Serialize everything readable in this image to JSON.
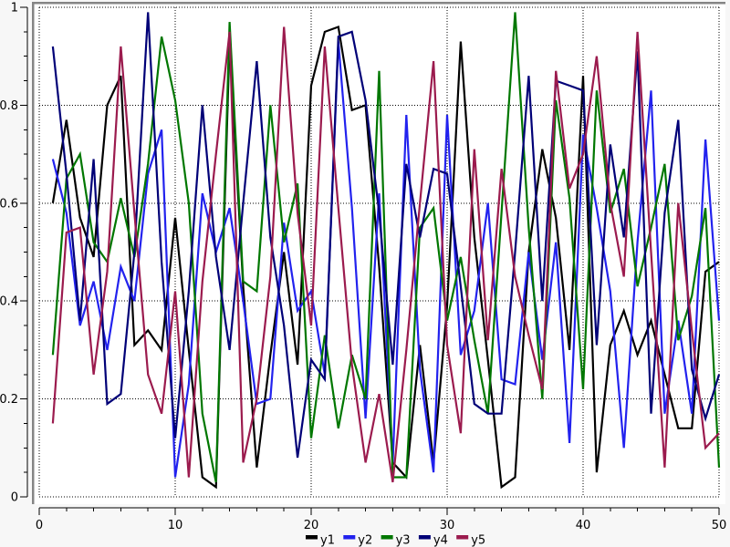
{
  "window": {
    "background": "#f7f7f7",
    "plot_background": "#ffffff",
    "frame_color": "#858585",
    "grid_color": "#000000",
    "tick_color": "#000000",
    "label_color": "#000000"
  },
  "chart_data": {
    "type": "line",
    "title": "",
    "xlabel": "",
    "ylabel": "",
    "xlim": [
      0,
      50
    ],
    "ylim": [
      0,
      1
    ],
    "grid": "dotted",
    "legend_position": "bottom-center",
    "x_major_ticks": [
      0,
      10,
      20,
      30,
      40,
      50
    ],
    "x_minor_tick_step": 2,
    "y_major_ticks": [
      0,
      0.2,
      0.4,
      0.6,
      0.8,
      1
    ],
    "y_minor_tick_step": 0.05,
    "x_tick_labels": [
      "0",
      "10",
      "20",
      "30",
      "40",
      "50"
    ],
    "y_tick_labels": [
      "0",
      "0.2",
      "0.4",
      "0.6",
      "0.8",
      "1"
    ],
    "x": [
      1,
      2,
      3,
      4,
      5,
      6,
      7,
      8,
      9,
      10,
      11,
      12,
      13,
      14,
      15,
      16,
      17,
      18,
      19,
      20,
      21,
      22,
      23,
      24,
      25,
      26,
      27,
      28,
      29,
      30,
      31,
      32,
      33,
      34,
      35,
      36,
      37,
      38,
      39,
      40,
      41,
      42,
      43,
      44,
      45,
      46,
      47,
      48,
      49,
      50
    ],
    "series": [
      {
        "name": "y1",
        "color": "#000000",
        "values": [
          0.6,
          0.77,
          0.57,
          0.49,
          0.8,
          0.86,
          0.31,
          0.34,
          0.3,
          0.57,
          0.3,
          0.04,
          0.02,
          0.93,
          0.43,
          0.06,
          0.29,
          0.5,
          0.27,
          0.84,
          0.95,
          0.96,
          0.79,
          0.8,
          0.47,
          0.07,
          0.04,
          0.31,
          0.07,
          0.39,
          0.93,
          0.53,
          0.28,
          0.02,
          0.04,
          0.5,
          0.71,
          0.57,
          0.3,
          0.86,
          0.05,
          0.31,
          0.38,
          0.29,
          0.36,
          0.25,
          0.14,
          0.14,
          0.46,
          0.48
        ]
      },
      {
        "name": "y2",
        "color": "#2222ee",
        "values": [
          0.69,
          0.58,
          0.35,
          0.44,
          0.3,
          0.47,
          0.4,
          0.66,
          0.75,
          0.04,
          0.23,
          0.62,
          0.5,
          0.59,
          0.4,
          0.19,
          0.2,
          0.56,
          0.38,
          0.42,
          0.25,
          0.93,
          0.59,
          0.16,
          0.62,
          0.07,
          0.78,
          0.26,
          0.05,
          0.78,
          0.29,
          0.38,
          0.6,
          0.24,
          0.23,
          0.5,
          0.28,
          0.52,
          0.11,
          0.74,
          0.59,
          0.42,
          0.1,
          0.52,
          0.83,
          0.17,
          0.36,
          0.17,
          0.73,
          0.36
        ]
      },
      {
        "name": "y3",
        "color": "#007700",
        "values": [
          0.29,
          0.65,
          0.7,
          0.52,
          0.48,
          0.61,
          0.49,
          0.68,
          0.94,
          0.81,
          0.6,
          0.17,
          0.03,
          0.97,
          0.44,
          0.42,
          0.8,
          0.52,
          0.64,
          0.12,
          0.33,
          0.14,
          0.29,
          0.2,
          0.87,
          0.04,
          0.04,
          0.55,
          0.59,
          0.36,
          0.49,
          0.32,
          0.17,
          0.58,
          0.99,
          0.55,
          0.2,
          0.81,
          0.61,
          0.22,
          0.83,
          0.58,
          0.67,
          0.43,
          0.55,
          0.68,
          0.32,
          0.41,
          0.59,
          0.06
        ]
      },
      {
        "name": "y4",
        "color": "#000077",
        "values": [
          0.92,
          0.66,
          0.36,
          0.69,
          0.19,
          0.21,
          0.5,
          0.99,
          0.48,
          0.12,
          0.42,
          0.8,
          0.49,
          0.3,
          0.6,
          0.89,
          0.53,
          0.35,
          0.08,
          0.28,
          0.24,
          0.94,
          0.95,
          0.81,
          0.58,
          0.27,
          0.68,
          0.53,
          0.67,
          0.66,
          0.43,
          0.19,
          0.17,
          0.17,
          0.5,
          0.86,
          0.4,
          0.85,
          0.84,
          0.83,
          0.31,
          0.72,
          0.53,
          0.91,
          0.17,
          0.58,
          0.77,
          0.26,
          0.16,
          0.25
        ]
      },
      {
        "name": "y5",
        "color": "#9b1b4e",
        "values": [
          0.15,
          0.54,
          0.55,
          0.25,
          0.46,
          0.92,
          0.58,
          0.25,
          0.17,
          0.42,
          0.04,
          0.44,
          0.7,
          0.95,
          0.07,
          0.2,
          0.45,
          0.96,
          0.58,
          0.35,
          0.92,
          0.59,
          0.27,
          0.07,
          0.21,
          0.03,
          0.3,
          0.6,
          0.89,
          0.31,
          0.13,
          0.71,
          0.32,
          0.67,
          0.45,
          0.33,
          0.22,
          0.87,
          0.63,
          0.7,
          0.9,
          0.6,
          0.45,
          0.95,
          0.5,
          0.06,
          0.6,
          0.34,
          0.1,
          0.13
        ]
      }
    ],
    "legend": {
      "items": [
        "y1",
        "y2",
        "y3",
        "y4",
        "y5"
      ]
    }
  }
}
